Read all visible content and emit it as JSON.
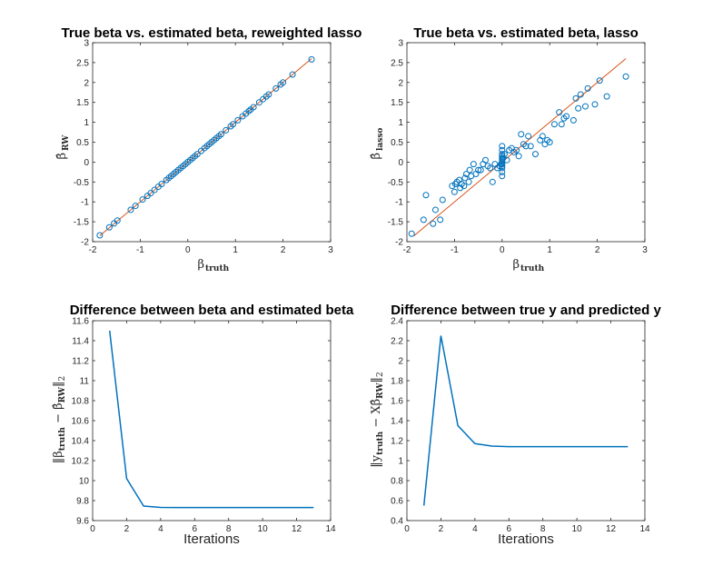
{
  "chart_data": [
    {
      "type": "scatter",
      "title": "True beta vs. estimated beta, reweighted lasso",
      "xlabel": "β_truth",
      "ylabel": "β̂_RW",
      "xlim": [
        -2,
        3
      ],
      "ylim": [
        -2,
        3
      ],
      "xticks": [
        "-2",
        "-1",
        "0",
        "1",
        "2",
        "3"
      ],
      "yticks": [
        "-2",
        "-1.5",
        "-1",
        "-0.5",
        "0",
        "0.5",
        "1",
        "1.5",
        "2",
        "2.5",
        "3"
      ],
      "series": [
        {
          "x": [
            -1.85,
            -1.65,
            -1.55,
            -1.48,
            -1.2,
            -1.1,
            -0.95,
            -0.85,
            -0.78,
            -0.7,
            -0.62,
            -0.55,
            -0.45,
            -0.4,
            -0.35,
            -0.3,
            -0.25,
            -0.2,
            -0.15,
            -0.1,
            -0.05,
            0.0,
            0.05,
            0.1,
            0.15,
            0.2,
            0.28,
            0.35,
            0.4,
            0.45,
            0.5,
            0.55,
            0.6,
            0.65,
            0.7,
            0.8,
            0.9,
            0.95,
            1.05,
            1.15,
            1.22,
            1.28,
            1.32,
            1.38,
            1.5,
            1.58,
            1.65,
            1.7,
            1.85,
            1.95,
            2.0,
            2.2,
            2.6
          ],
          "y": [
            -1.84,
            -1.64,
            -1.54,
            -1.47,
            -1.2,
            -1.1,
            -0.94,
            -0.85,
            -0.78,
            -0.7,
            -0.62,
            -0.55,
            -0.45,
            -0.4,
            -0.35,
            -0.3,
            -0.25,
            -0.2,
            -0.15,
            -0.1,
            -0.05,
            0.0,
            0.05,
            0.1,
            0.15,
            0.2,
            0.28,
            0.35,
            0.4,
            0.45,
            0.5,
            0.55,
            0.6,
            0.65,
            0.7,
            0.8,
            0.9,
            0.95,
            1.05,
            1.15,
            1.22,
            1.28,
            1.32,
            1.38,
            1.5,
            1.58,
            1.65,
            1.7,
            1.85,
            1.95,
            2.0,
            2.2,
            2.58
          ]
        }
      ],
      "reference_line": {
        "x": [
          -1.85,
          2.6
        ],
        "y": [
          -1.85,
          2.6
        ]
      },
      "marker_color": "#0072bd",
      "line_color": "#d95319"
    },
    {
      "type": "scatter",
      "title": "True beta vs. estimated beta, lasso",
      "xlabel": "β_truth",
      "ylabel": "β̂_lasso",
      "xlim": [
        -2,
        3
      ],
      "ylim": [
        -2,
        3
      ],
      "xticks": [
        "-2",
        "-1",
        "0",
        "1",
        "2",
        "3"
      ],
      "yticks": [
        "-2",
        "-1.5",
        "-1",
        "-0.5",
        "0",
        "0.5",
        "1",
        "1.5",
        "2",
        "2.5",
        "3"
      ],
      "series": [
        {
          "x": [
            -1.9,
            -1.65,
            -1.6,
            -1.45,
            -1.4,
            -1.3,
            -1.25,
            -1.05,
            -1.0,
            -0.98,
            -0.95,
            -0.9,
            -0.88,
            -0.85,
            -0.8,
            -0.78,
            -0.75,
            -0.7,
            -0.68,
            -0.65,
            -0.6,
            -0.55,
            -0.5,
            -0.45,
            -0.4,
            -0.35,
            -0.3,
            -0.25,
            -0.2,
            -0.15,
            -0.1,
            -0.05,
            -0.02,
            0.0,
            0.0,
            0.0,
            0.0,
            0.0,
            0.0,
            0.0,
            0.0,
            0.0,
            0.0,
            0.0,
            0.0,
            0.02,
            0.05,
            0.1,
            0.15,
            0.2,
            0.25,
            0.3,
            0.35,
            0.4,
            0.45,
            0.5,
            0.55,
            0.6,
            0.7,
            0.8,
            0.85,
            0.9,
            0.95,
            1.0,
            1.1,
            1.2,
            1.25,
            1.3,
            1.35,
            1.5,
            1.55,
            1.6,
            1.65,
            1.75,
            1.8,
            1.95,
            2.05,
            2.2,
            2.6
          ],
          "y": [
            -1.8,
            -1.45,
            -0.83,
            -1.55,
            -1.2,
            -1.45,
            -0.95,
            -0.6,
            -0.75,
            -0.55,
            -0.5,
            -0.45,
            -0.65,
            -0.55,
            -0.6,
            -0.4,
            -0.3,
            -0.5,
            -0.2,
            -0.35,
            -0.05,
            -0.3,
            -0.2,
            -0.2,
            -0.05,
            0.05,
            -0.1,
            -0.15,
            -0.5,
            -0.05,
            -0.15,
            -0.1,
            -0.05,
            -0.35,
            -0.25,
            -0.15,
            -0.1,
            -0.05,
            0.0,
            0.05,
            0.1,
            0.15,
            0.2,
            0.3,
            0.4,
            0.1,
            0.2,
            0.05,
            0.3,
            0.35,
            0.25,
            0.3,
            0.15,
            0.7,
            0.45,
            0.4,
            0.65,
            0.4,
            0.2,
            0.55,
            0.65,
            0.45,
            0.55,
            0.5,
            0.95,
            1.25,
            0.95,
            1.1,
            1.15,
            1.05,
            1.6,
            1.35,
            1.7,
            1.4,
            1.85,
            1.45,
            2.05,
            1.65,
            2.15
          ]
        }
      ],
      "reference_line": {
        "x": [
          -1.85,
          2.6
        ],
        "y": [
          -1.85,
          2.6
        ]
      },
      "marker_color": "#0072bd",
      "line_color": "#d95319"
    },
    {
      "type": "line",
      "title": "Difference between beta and estimated beta",
      "xlabel": "Iterations",
      "ylabel": "||β_truth − β̂_RW||₂",
      "xlim": [
        0,
        14
      ],
      "ylim": [
        9.6,
        11.6
      ],
      "xticks": [
        "0",
        "2",
        "4",
        "6",
        "8",
        "10",
        "12",
        "14"
      ],
      "yticks": [
        "9.6",
        "9.8",
        "10",
        "10.2",
        "10.4",
        "10.6",
        "10.8",
        "11",
        "11.2",
        "11.4",
        "11.6"
      ],
      "series": [
        {
          "x": [
            1,
            2,
            3,
            4,
            5,
            6,
            7,
            8,
            9,
            10,
            11,
            12,
            13
          ],
          "y": [
            11.5,
            10.02,
            9.745,
            9.732,
            9.731,
            9.731,
            9.731,
            9.731,
            9.731,
            9.731,
            9.731,
            9.731,
            9.731
          ]
        }
      ],
      "line_color": "#0072bd"
    },
    {
      "type": "line",
      "title": "Difference between true y and predicted y",
      "xlabel": "Iterations",
      "ylabel": "||y_truth − Xβ̂_RW||₂",
      "xlim": [
        0,
        14
      ],
      "ylim": [
        0.4,
        2.4
      ],
      "xticks": [
        "0",
        "2",
        "4",
        "6",
        "8",
        "10",
        "12",
        "14"
      ],
      "yticks": [
        "0.4",
        "0.6",
        "0.8",
        "1",
        "1.2",
        "1.4",
        "1.6",
        "1.8",
        "2",
        "2.2",
        "2.4"
      ],
      "series": [
        {
          "x": [
            1,
            2,
            3,
            4,
            5,
            6,
            7,
            8,
            9,
            10,
            11,
            12,
            13
          ],
          "y": [
            0.55,
            2.25,
            1.35,
            1.17,
            1.145,
            1.14,
            1.14,
            1.14,
            1.14,
            1.14,
            1.14,
            1.14,
            1.14
          ]
        }
      ],
      "line_color": "#0072bd"
    }
  ]
}
